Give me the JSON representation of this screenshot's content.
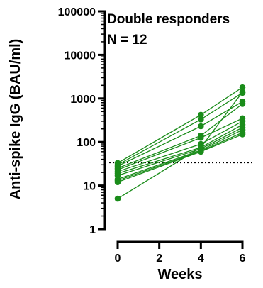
{
  "chart_data": {
    "type": "line",
    "xlabel": "Weeks",
    "ylabel": "Anti-spike IgG (BAU/ml)",
    "x_ticks": [
      0,
      2,
      4,
      6
    ],
    "y_ticks": [
      1,
      10,
      100,
      1000,
      10000,
      100000
    ],
    "y_tick_labels": [
      "1",
      "10",
      "100",
      "1000",
      "10000",
      "100000"
    ],
    "xlim": [
      -0.4,
      6
    ],
    "ylim": [
      1,
      100000
    ],
    "yscale": "log",
    "annotations": [
      "Double responders",
      "N = 12"
    ],
    "threshold": 33.8,
    "colors": {
      "series": "#1a8c1a",
      "axis": "#000000",
      "threshold": "#000000"
    },
    "series": [
      {
        "x": [
          0,
          4,
          6
        ],
        "values": [
          33,
          420,
          1800
        ]
      },
      {
        "x": [
          0,
          4,
          6
        ],
        "values": [
          30,
          330,
          1350
        ]
      },
      {
        "x": [
          0,
          4,
          6
        ],
        "values": [
          28,
          230,
          850
        ]
      },
      {
        "x": [
          0,
          4,
          6
        ],
        "values": [
          25,
          140,
          750
        ]
      },
      {
        "x": [
          0,
          4,
          6
        ],
        "values": [
          23,
          125,
          350
        ]
      },
      {
        "x": [
          0,
          4,
          6
        ],
        "values": [
          21,
          90,
          300
        ]
      },
      {
        "x": [
          0,
          4,
          6
        ],
        "values": [
          19,
          75,
          250
        ]
      },
      {
        "x": [
          0,
          4,
          6
        ],
        "values": [
          17,
          70,
          215
        ]
      },
      {
        "x": [
          0,
          4,
          6
        ],
        "values": [
          14,
          65,
          190
        ]
      },
      {
        "x": [
          0,
          4,
          6
        ],
        "values": [
          13,
          62,
          165
        ]
      },
      {
        "x": [
          0,
          4,
          6
        ],
        "values": [
          12,
          60,
          150
        ]
      },
      {
        "x": [
          0,
          4,
          6
        ],
        "values": [
          5,
          75,
          1400
        ]
      }
    ]
  }
}
